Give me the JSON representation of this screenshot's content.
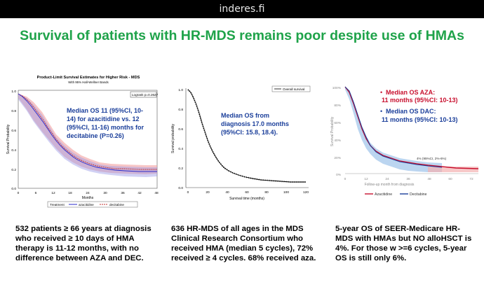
{
  "browser": {
    "site": "inderes.fi"
  },
  "slide": {
    "title": "Survival of patients with HR-MDS remains poor despite use of HMAs",
    "accent": "#1fa34a",
    "chart1": {
      "title": "Product-Limit Survival Estimates for Higher Risk - MDS",
      "subtitle": "With 95% Hall-Wellner Bands",
      "logrank": "Logrank p=0.2627",
      "ylabel": "Survival Probability",
      "xlabel": "Months",
      "xticks": [
        "0",
        "6",
        "12",
        "18",
        "24",
        "30",
        "36",
        "42",
        "48"
      ],
      "yticks": [
        "0.0",
        "0.2",
        "0.4",
        "0.6",
        "0.8",
        "1.0"
      ],
      "annotation": [
        "Median OS 11 (95%CI, 10-",
        "14) for azacitidine vs. 12",
        "(95%CI, 11-16) months for",
        "decitabine (P=0.26)"
      ],
      "legend": {
        "label": "Treatment",
        "s1": "azacitidine",
        "s2": "decitabine"
      }
    },
    "chart2": {
      "legend": "Overall survival",
      "ylabel": "Survival probability",
      "xlabel": "Survival time (months)",
      "xticks": [
        "0",
        "20",
        "40",
        "60",
        "80",
        "100",
        "120"
      ],
      "yticks": [
        "0.0",
        "0.2",
        "0.4",
        "0.6",
        "0.8",
        "1.0"
      ],
      "annotation": [
        "Median OS from",
        "diagnosis 17.0 months",
        "(95%CI: 15.8, 18.4)."
      ]
    },
    "chart3": {
      "ylabel": "Survival Probability",
      "xlabel": "Follow-up month from diagnosis",
      "yticks": [
        "100%",
        "80%",
        "60%",
        "40%",
        "20%",
        "0%"
      ],
      "xticks": [
        "0",
        "12",
        "24",
        "36",
        "48",
        "60",
        "72"
      ],
      "note": "4% (95%CI, 2%-6%)",
      "aza_line1": "Median OS AZA:",
      "aza_line2": "11 months (95%CI: 10-13)",
      "dac_line1": "Median OS DAC:",
      "dac_line2": "11 months (95%CI: 10-13)",
      "legend": {
        "s1": "Azacitidine",
        "s2": "Decitabine"
      },
      "red": "#c8102e",
      "blue": "#1a3e9a"
    },
    "captions": {
      "c1": "532 patients ≥ 66 years at diagnosis who received ≥ 10 days of HMA therapy is 11-12 months, with no difference between AZA and DEC.",
      "c2": "636 HR-MDS of all ages in the MDS Clinical Research Consortium who received HMA (median 5 cycles), 72% received  ≥ 4 cycles. 68% received aza.",
      "c3": "5-year OS of SEER-Medicare HR-MDS with HMAs but NO alloHSCT is 4%. For those w >=6 cycles, 5-year OS is still only 6%."
    }
  }
}
